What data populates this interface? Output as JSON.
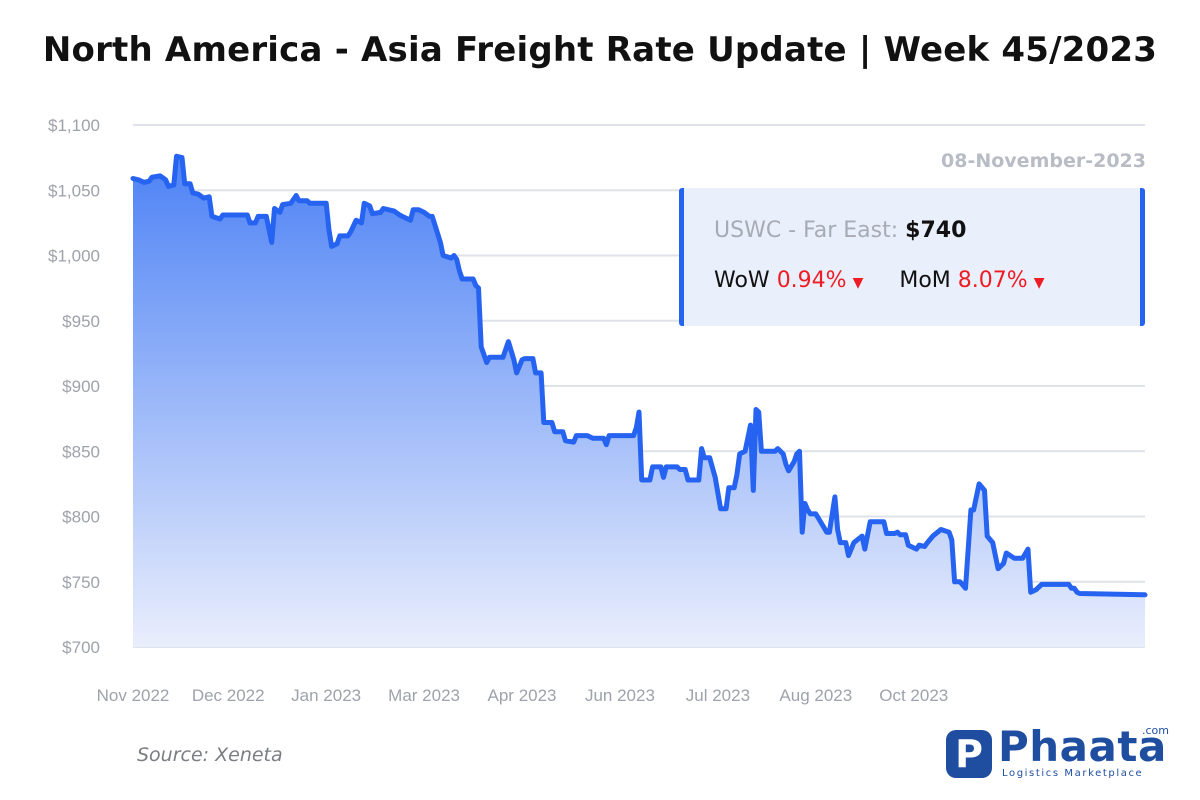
{
  "header": {
    "title": "North America - Asia Freight Rate Update | Week 45/2023"
  },
  "info": {
    "date": "08-November-2023",
    "route_label": "USWC - Far East:",
    "route_value": "$740",
    "wow_label": "WoW",
    "wow_value": "0.94%",
    "mom_label": "MoM",
    "mom_value": "8.07%"
  },
  "footer": {
    "source": "Source: Xeneta"
  },
  "logo": {
    "name": "Phaata",
    "suffix": ".com",
    "tagline": "Logistics Marketplace",
    "mark_letter": "P",
    "color": "#1f4ea0"
  },
  "chart_data": {
    "type": "area",
    "title": "North America - Asia Freight Rate Update | Week 45/2023",
    "xlabel": "",
    "ylabel": "",
    "ylim": [
      700,
      1100
    ],
    "xlim": [
      "2022-11-01",
      "2023-11-08"
    ],
    "grid": true,
    "line_color": "#2563f0",
    "yticks": [
      {
        "value": 1100,
        "label": "$1,100"
      },
      {
        "value": 1050,
        "label": "$1,050"
      },
      {
        "value": 1000,
        "label": "$1,000"
      },
      {
        "value": 950,
        "label": "$950"
      },
      {
        "value": 900,
        "label": "$900"
      },
      {
        "value": 850,
        "label": "$850"
      },
      {
        "value": 800,
        "label": "$800"
      },
      {
        "value": 750,
        "label": "$750"
      },
      {
        "value": 700,
        "label": "$700"
      }
    ],
    "xticks": [
      {
        "date": "2022-11-01",
        "label": "Nov 2022"
      },
      {
        "date": "2022-12-06",
        "label": "Dec 2022"
      },
      {
        "date": "2023-01-11",
        "label": "Jan 2023"
      },
      {
        "date": "2023-02-16",
        "label": "Mar 2023"
      },
      {
        "date": "2023-03-24",
        "label": "Apr 2023"
      },
      {
        "date": "2023-04-29",
        "label": "Jun 2023"
      },
      {
        "date": "2023-06-04",
        "label": "Jul 2023"
      },
      {
        "date": "2023-07-10",
        "label": "Aug 2023"
      },
      {
        "date": "2023-08-15",
        "label": "Oct 2023"
      }
    ],
    "series": [
      {
        "values": [
          [
            "2022-11-01",
            1059
          ],
          [
            "2022-11-03",
            1058
          ],
          [
            "2022-11-05",
            1056
          ],
          [
            "2022-11-07",
            1057
          ],
          [
            "2022-11-08",
            1060
          ],
          [
            "2022-11-11",
            1061
          ],
          [
            "2022-11-13",
            1058
          ],
          [
            "2022-11-14",
            1053
          ],
          [
            "2022-11-16",
            1054
          ],
          [
            "2022-11-17",
            1076
          ],
          [
            "2022-11-19",
            1075
          ],
          [
            "2022-11-20",
            1055
          ],
          [
            "2022-11-22",
            1055
          ],
          [
            "2022-11-23",
            1048
          ],
          [
            "2022-11-25",
            1047
          ],
          [
            "2022-11-27",
            1044
          ],
          [
            "2022-11-29",
            1045
          ],
          [
            "2022-11-30",
            1030
          ],
          [
            "2022-12-03",
            1028
          ],
          [
            "2022-12-04",
            1031
          ],
          [
            "2022-12-13",
            1031
          ],
          [
            "2022-12-14",
            1025
          ],
          [
            "2022-12-16",
            1025
          ],
          [
            "2022-12-17",
            1030
          ],
          [
            "2022-12-20",
            1030
          ],
          [
            "2022-12-21",
            1020
          ],
          [
            "2022-12-22",
            1010
          ],
          [
            "2022-12-23",
            1036
          ],
          [
            "2022-12-25",
            1033
          ],
          [
            "2022-12-26",
            1039
          ],
          [
            "2022-12-29",
            1040
          ],
          [
            "2022-12-31",
            1046
          ],
          [
            "2023-01-01",
            1042
          ],
          [
            "2023-01-04",
            1042
          ],
          [
            "2023-01-05",
            1040
          ],
          [
            "2023-01-11",
            1040
          ],
          [
            "2023-01-12",
            1020
          ],
          [
            "2023-01-13",
            1007
          ],
          [
            "2023-01-15",
            1009
          ],
          [
            "2023-01-16",
            1015
          ],
          [
            "2023-01-19",
            1015
          ],
          [
            "2023-01-20",
            1018
          ],
          [
            "2023-01-22",
            1027
          ],
          [
            "2023-01-24",
            1025
          ],
          [
            "2023-01-25",
            1040
          ],
          [
            "2023-01-27",
            1038
          ],
          [
            "2023-01-28",
            1032
          ],
          [
            "2023-01-31",
            1033
          ],
          [
            "2023-02-01",
            1036
          ],
          [
            "2023-02-05",
            1034
          ],
          [
            "2023-02-07",
            1031
          ],
          [
            "2023-02-08",
            1030
          ],
          [
            "2023-02-11",
            1027
          ],
          [
            "2023-02-12",
            1035
          ],
          [
            "2023-02-14",
            1035
          ],
          [
            "2023-02-16",
            1033
          ],
          [
            "2023-02-18",
            1030
          ],
          [
            "2023-02-19",
            1030
          ],
          [
            "2023-02-22",
            1010
          ],
          [
            "2023-02-23",
            1000
          ],
          [
            "2023-02-26",
            998
          ],
          [
            "2023-02-27",
            1000
          ],
          [
            "2023-02-28",
            997
          ],
          [
            "2023-03-01",
            988
          ],
          [
            "2023-03-02",
            982
          ],
          [
            "2023-03-06",
            982
          ],
          [
            "2023-03-07",
            977
          ],
          [
            "2023-03-08",
            975
          ],
          [
            "2023-03-09",
            930
          ],
          [
            "2023-03-11",
            918
          ],
          [
            "2023-03-12",
            922
          ],
          [
            "2023-03-17",
            922
          ],
          [
            "2023-03-19",
            934
          ],
          [
            "2023-03-21",
            920
          ],
          [
            "2023-03-22",
            910
          ],
          [
            "2023-03-24",
            920
          ],
          [
            "2023-03-25",
            921
          ],
          [
            "2023-03-28",
            921
          ],
          [
            "2023-03-29",
            910
          ],
          [
            "2023-03-31",
            910
          ],
          [
            "2023-04-01",
            872
          ],
          [
            "2023-04-04",
            872
          ],
          [
            "2023-04-05",
            865
          ],
          [
            "2023-04-08",
            865
          ],
          [
            "2023-04-09",
            858
          ],
          [
            "2023-04-12",
            857
          ],
          [
            "2023-04-13",
            862
          ],
          [
            "2023-04-17",
            862
          ],
          [
            "2023-04-19",
            860
          ],
          [
            "2023-04-23",
            860
          ],
          [
            "2023-04-24",
            855
          ],
          [
            "2023-04-25",
            862
          ],
          [
            "2023-04-27",
            862
          ],
          [
            "2023-05-04",
            862
          ],
          [
            "2023-05-05",
            868
          ],
          [
            "2023-05-06",
            880
          ],
          [
            "2023-05-07",
            828
          ],
          [
            "2023-05-10",
            828
          ],
          [
            "2023-05-11",
            838
          ],
          [
            "2023-05-14",
            838
          ],
          [
            "2023-05-15",
            830
          ],
          [
            "2023-05-16",
            838
          ],
          [
            "2023-05-20",
            838
          ],
          [
            "2023-05-21",
            836
          ],
          [
            "2023-05-23",
            836
          ],
          [
            "2023-05-24",
            828
          ],
          [
            "2023-05-28",
            828
          ],
          [
            "2023-05-29",
            852
          ],
          [
            "2023-05-30",
            845
          ],
          [
            "2023-06-01",
            845
          ],
          [
            "2023-06-03",
            830
          ],
          [
            "2023-06-05",
            806
          ],
          [
            "2023-06-07",
            806
          ],
          [
            "2023-06-08",
            822
          ],
          [
            "2023-06-10",
            822
          ],
          [
            "2023-06-11",
            832
          ],
          [
            "2023-06-12",
            848
          ],
          [
            "2023-06-14",
            850
          ],
          [
            "2023-06-15",
            860
          ],
          [
            "2023-06-16",
            870
          ],
          [
            "2023-06-17",
            820
          ],
          [
            "2023-06-18",
            882
          ],
          [
            "2023-06-19",
            880
          ],
          [
            "2023-06-20",
            850
          ],
          [
            "2023-06-25",
            850
          ],
          [
            "2023-06-26",
            852
          ],
          [
            "2023-06-28",
            848
          ],
          [
            "2023-06-29",
            840
          ],
          [
            "2023-06-30",
            835
          ],
          [
            "2023-07-02",
            842
          ],
          [
            "2023-07-03",
            848
          ],
          [
            "2023-07-04",
            850
          ],
          [
            "2023-07-05",
            788
          ],
          [
            "2023-07-06",
            810
          ],
          [
            "2023-07-07",
            805
          ],
          [
            "2023-07-08",
            802
          ],
          [
            "2023-07-10",
            802
          ],
          [
            "2023-07-12",
            795
          ],
          [
            "2023-07-14",
            788
          ],
          [
            "2023-07-15",
            788
          ],
          [
            "2023-07-17",
            815
          ],
          [
            "2023-07-18",
            790
          ],
          [
            "2023-07-19",
            780
          ],
          [
            "2023-07-21",
            780
          ],
          [
            "2023-07-22",
            770
          ],
          [
            "2023-07-24",
            780
          ],
          [
            "2023-07-27",
            785
          ],
          [
            "2023-07-28",
            775
          ],
          [
            "2023-07-30",
            796
          ],
          [
            "2023-08-04",
            796
          ],
          [
            "2023-08-05",
            787
          ],
          [
            "2023-08-08",
            787
          ],
          [
            "2023-08-09",
            788
          ],
          [
            "2023-08-10",
            786
          ],
          [
            "2023-08-12",
            786
          ],
          [
            "2023-08-13",
            778
          ],
          [
            "2023-08-16",
            775
          ],
          [
            "2023-08-17",
            778
          ],
          [
            "2023-08-19",
            777
          ],
          [
            "2023-08-20",
            780
          ],
          [
            "2023-08-22",
            785
          ],
          [
            "2023-08-25",
            790
          ],
          [
            "2023-08-28",
            788
          ],
          [
            "2023-08-29",
            782
          ],
          [
            "2023-08-30",
            750
          ],
          [
            "2023-09-01",
            750
          ],
          [
            "2023-09-03",
            745
          ],
          [
            "2023-09-05",
            805
          ],
          [
            "2023-09-06",
            805
          ],
          [
            "2023-09-08",
            825
          ],
          [
            "2023-09-10",
            820
          ],
          [
            "2023-09-11",
            785
          ],
          [
            "2023-09-13",
            780
          ],
          [
            "2023-09-15",
            760
          ],
          [
            "2023-09-17",
            764
          ],
          [
            "2023-09-18",
            772
          ],
          [
            "2023-09-21",
            768
          ],
          [
            "2023-09-24",
            768
          ],
          [
            "2023-09-26",
            775
          ],
          [
            "2023-09-27",
            742
          ],
          [
            "2023-09-29",
            744
          ],
          [
            "2023-10-01",
            748
          ],
          [
            "2023-10-11",
            748
          ],
          [
            "2023-10-12",
            745
          ],
          [
            "2023-10-13",
            745
          ],
          [
            "2023-10-14",
            742
          ],
          [
            "2023-10-15",
            741
          ],
          [
            "2023-11-08",
            740
          ]
        ]
      }
    ]
  }
}
